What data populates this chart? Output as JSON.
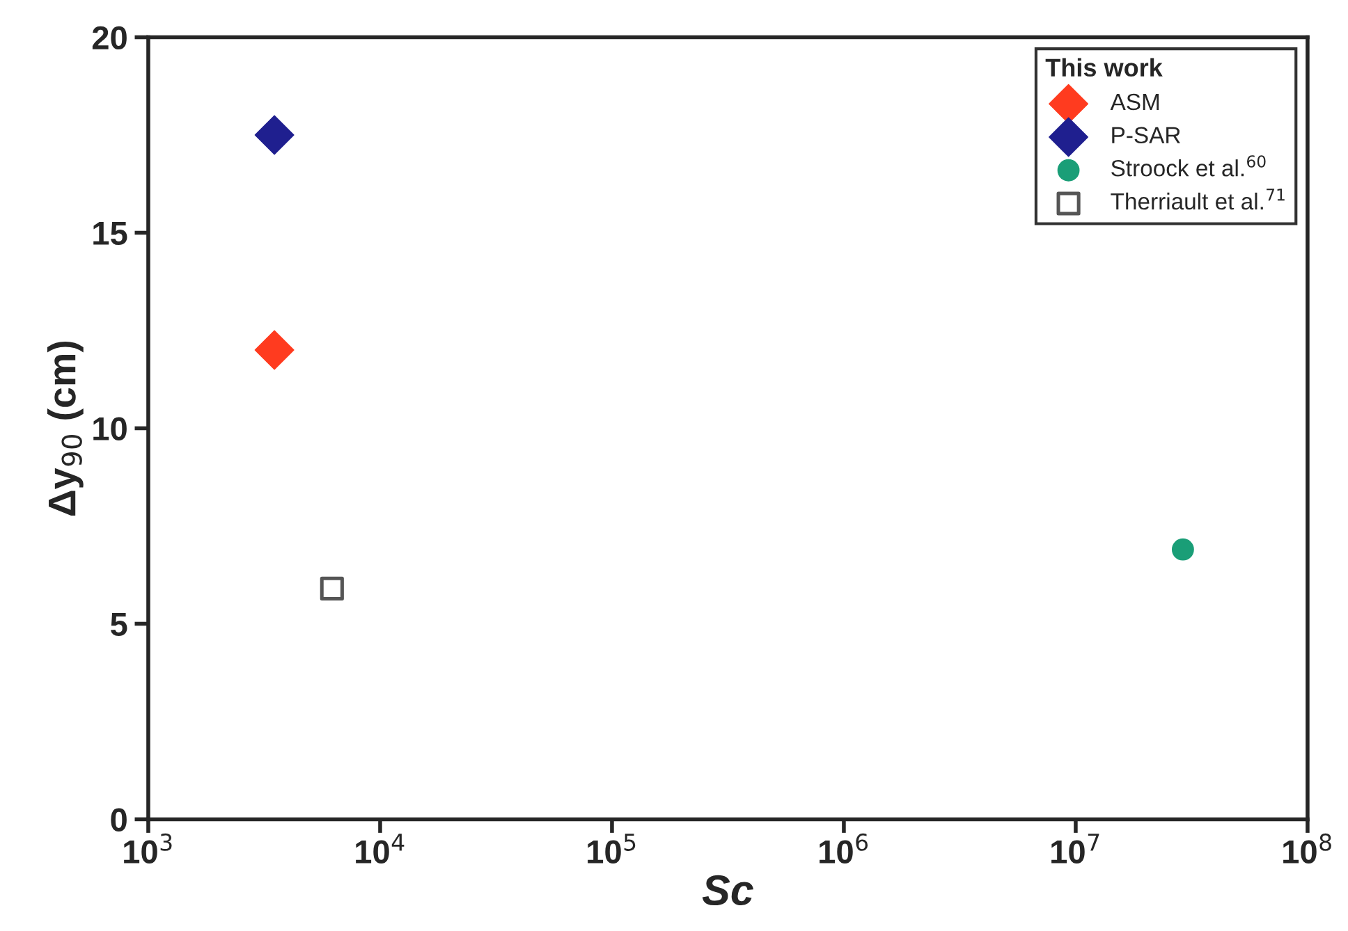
{
  "chart_data": {
    "type": "scatter",
    "xlabel": "Sc",
    "ylabel": "Δy$_{90}$ (cm)",
    "legend_title": "This work",
    "legend": "top right",
    "grid": false,
    "log": "x",
    "xlim": [
      1000,
      100000000
    ],
    "xticks": [
      {
        "value": 1000,
        "label": "10$^{3}$"
      },
      {
        "value": 10000,
        "label": "10$^{4}$"
      },
      {
        "value": 100000,
        "label": "10$^{5}$"
      },
      {
        "value": 1000000,
        "label": "10$^{6}$"
      },
      {
        "value": 10000000,
        "label": "10$^{7}$"
      },
      {
        "value": 100000000,
        "label": "10$^{8}$"
      }
    ],
    "ylim": [
      0,
      20
    ],
    "yticks": [
      0,
      5,
      10,
      15,
      20
    ],
    "series": [
      {
        "name": "ASM",
        "color": "#ff3b1f",
        "marker": "diamond",
        "x": [
          3500
        ],
        "values": [
          12
        ]
      },
      {
        "name": "P-SAR",
        "color": "#1f1f8f",
        "marker": "diamond",
        "x": [
          3500
        ],
        "values": [
          17.5
        ]
      },
      {
        "name": "Stroock et al.$^{60}$",
        "color": "#1a9e77",
        "marker": "circle",
        "x": [
          29000000
        ],
        "values": [
          6.9
        ]
      },
      {
        "name": "Therriault et al.$^{71}$",
        "color": "#555555",
        "marker": "square",
        "x": [
          6200
        ],
        "values": [
          5.9
        ]
      }
    ]
  }
}
